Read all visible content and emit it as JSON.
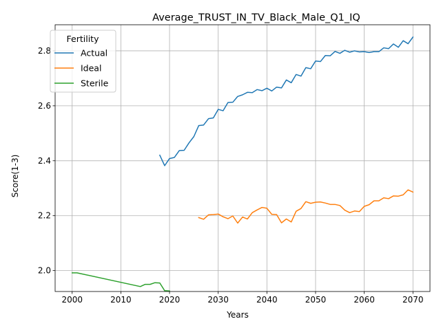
{
  "chart_data": {
    "type": "line",
    "title": "Average_TRUST_IN_TV_Black_Male_Q1_IQ",
    "xlabel": "Years",
    "ylabel": "Score(1-3)",
    "xlim": [
      1996.5,
      2073.5
    ],
    "ylim": [
      1.924,
      2.895
    ],
    "xticks": [
      2000,
      2010,
      2020,
      2030,
      2040,
      2050,
      2060,
      2070
    ],
    "yticks": [
      2.0,
      2.2,
      2.4,
      2.6,
      2.8
    ],
    "ytick_labels": [
      "2.0",
      "2.2",
      "2.4",
      "2.6",
      "2.8"
    ],
    "grid": true,
    "legend": {
      "title": "Fertility",
      "placement": "top-left"
    },
    "series": [
      {
        "name": "Actual",
        "color": "#1f77b4",
        "x": [
          2018,
          2019,
          2020,
          2021,
          2022,
          2023,
          2024,
          2025,
          2026,
          2027,
          2028,
          2029,
          2030,
          2031,
          2032,
          2033,
          2034,
          2035,
          2036,
          2037,
          2038,
          2039,
          2040,
          2041,
          2042,
          2043,
          2044,
          2045,
          2046,
          2047,
          2048,
          2049,
          2050,
          2051,
          2052,
          2053,
          2054,
          2055,
          2056,
          2057,
          2058,
          2059,
          2060,
          2061,
          2062,
          2063,
          2064,
          2065,
          2066,
          2067,
          2068,
          2069,
          2070
        ],
        "y": [
          2.42,
          2.382,
          2.408,
          2.412,
          2.437,
          2.438,
          2.465,
          2.488,
          2.528,
          2.53,
          2.553,
          2.556,
          2.587,
          2.582,
          2.612,
          2.613,
          2.634,
          2.64,
          2.649,
          2.648,
          2.659,
          2.655,
          2.664,
          2.654,
          2.668,
          2.665,
          2.694,
          2.684,
          2.714,
          2.708,
          2.739,
          2.735,
          2.763,
          2.761,
          2.783,
          2.782,
          2.798,
          2.791,
          2.802,
          2.795,
          2.8,
          2.796,
          2.797,
          2.794,
          2.797,
          2.797,
          2.811,
          2.808,
          2.825,
          2.813,
          2.837,
          2.826,
          2.85
        ]
      },
      {
        "name": "Ideal",
        "color": "#ff7f0e",
        "x": [
          2026,
          2027,
          2028,
          2029,
          2030,
          2031,
          2032,
          2033,
          2034,
          2035,
          2036,
          2037,
          2038,
          2039,
          2040,
          2041,
          2042,
          2043,
          2044,
          2045,
          2046,
          2047,
          2048,
          2049,
          2050,
          2051,
          2052,
          2053,
          2054,
          2055,
          2056,
          2057,
          2058,
          2059,
          2060,
          2061,
          2062,
          2063,
          2064,
          2065,
          2066,
          2067,
          2068,
          2069,
          2070
        ],
        "y": [
          2.193,
          2.187,
          2.203,
          2.204,
          2.206,
          2.196,
          2.189,
          2.199,
          2.173,
          2.195,
          2.188,
          2.211,
          2.221,
          2.23,
          2.227,
          2.205,
          2.204,
          2.174,
          2.188,
          2.177,
          2.216,
          2.226,
          2.251,
          2.245,
          2.249,
          2.25,
          2.246,
          2.241,
          2.241,
          2.237,
          2.22,
          2.211,
          2.217,
          2.215,
          2.234,
          2.24,
          2.254,
          2.254,
          2.265,
          2.262,
          2.272,
          2.271,
          2.276,
          2.294,
          2.286
        ]
      },
      {
        "name": "Sterile",
        "color": "#2ca02c",
        "x": [
          2000,
          2001,
          2014,
          2015,
          2016,
          2017,
          2018,
          2019,
          2020
        ],
        "y": [
          1.992,
          1.992,
          1.942,
          1.95,
          1.95,
          1.956,
          1.955,
          1.927,
          1.926
        ]
      }
    ]
  }
}
